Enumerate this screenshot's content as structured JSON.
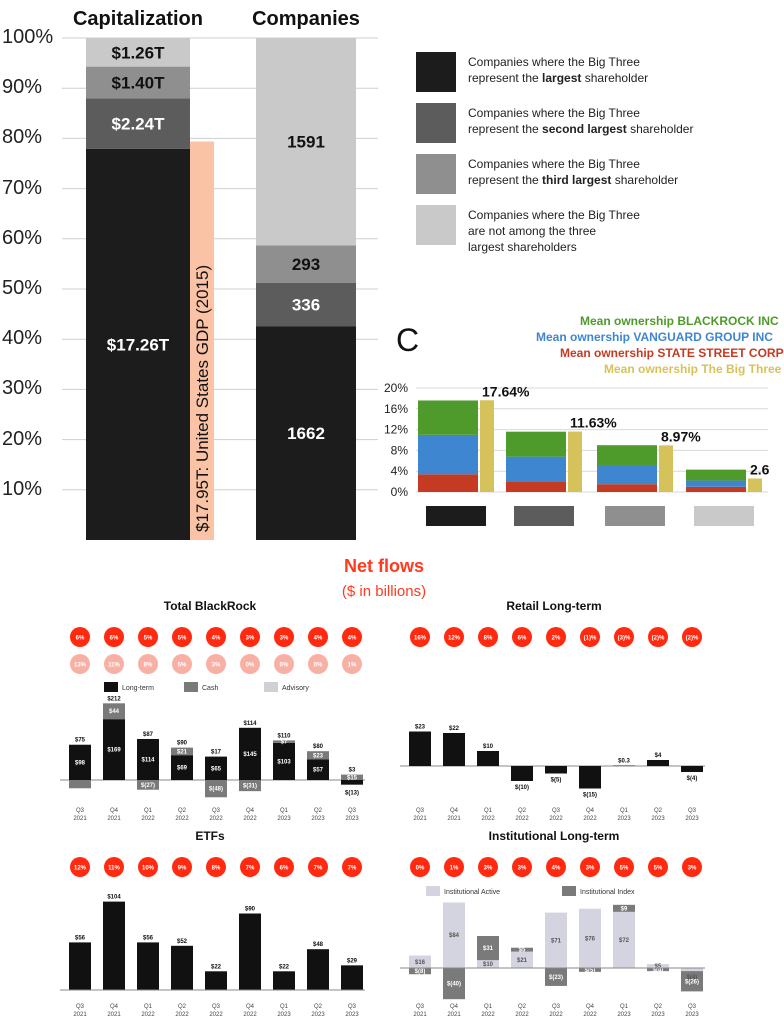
{
  "top_left": {
    "headers": [
      "Capitalization",
      "Companies"
    ],
    "y_ticks": [
      "100%",
      "90%",
      "80%",
      "70%",
      "60%",
      "50%",
      "40%",
      "30%",
      "20%",
      "10%"
    ],
    "gdp_label": "$17.95T: United States GDP (2015)",
    "gdp_value_t": 17.95
  },
  "legend": [
    {
      "text_html": "Companies where the Big Three<br>represent the <b>largest</b> shareholder",
      "color": "#1c1c1c"
    },
    {
      "text_html": "Companies where the Big Three<br>represent the <b>second largest</b> shareholder",
      "color": "#5c5c5c"
    },
    {
      "text_html": "Companies where the Big Three<br>represent the <b>third largest</b> shareholder",
      "color": "#8f8f8f"
    },
    {
      "text_html": "Companies where the Big Three<br>are not among the three<br>largest shareholders",
      "color": "#c9c9c9"
    }
  ],
  "panel_c": {
    "letter": "C",
    "legend": [
      {
        "label": "Mean ownership BLACKROCK INC",
        "color": "#4e9a2a"
      },
      {
        "label": "Mean ownership VANGUARD GROUP INC",
        "color": "#3f86d1"
      },
      {
        "label": "Mean ownership STATE STREET CORP",
        "color": "#c53a22"
      },
      {
        "label": "Mean ownership The Big Three",
        "color": "#d6c25a"
      }
    ],
    "y_ticks": [
      "20%",
      "16%",
      "12%",
      "8%",
      "4%",
      "0%"
    ]
  },
  "flows": {
    "title": "Net flows",
    "subtitle": "($ in billions)",
    "bar_legend": [
      "Long-term",
      "Cash",
      "Advisory"
    ],
    "inst_legend": [
      "Institutional Active",
      "Institutional Index"
    ]
  },
  "chart_data": [
    {
      "type": "bar",
      "title": "",
      "categories": [
        "Capitalization",
        "Companies"
      ],
      "ylim": [
        0,
        100
      ],
      "series": [
        {
          "name": "Companies where the Big Three represent the largest shareholder",
          "labels": [
            "$17.26T",
            "1662"
          ],
          "values": [
            77.9,
            42.6
          ]
        },
        {
          "name": "Companies where the Big Three represent the second largest shareholder",
          "labels": [
            "$2.24T",
            "336"
          ],
          "values": [
            10.1,
            8.6
          ]
        },
        {
          "name": "Companies where the Big Three represent the third largest shareholder",
          "labels": [
            "$1.40T",
            "293"
          ],
          "values": [
            6.3,
            7.5
          ]
        },
        {
          "name": "Companies where the Big Three are not among the three largest shareholders",
          "labels": [
            "$1.26T",
            "1591"
          ],
          "values": [
            5.7,
            41.3
          ]
        }
      ]
    },
    {
      "type": "bar",
      "title": "",
      "categories": [
        "Largest",
        "Second largest",
        "Third largest",
        "Not among top three"
      ],
      "ylim": [
        0,
        20
      ],
      "series": [
        {
          "name": "Mean ownership BLACKROCK INC",
          "values": [
            6.6,
            4.8,
            3.9,
            2.1
          ]
        },
        {
          "name": "Mean ownership VANGUARD GROUP INC",
          "values": [
            7.6,
            4.8,
            3.6,
            1.2
          ]
        },
        {
          "name": "Mean ownership STATE STREET CORP",
          "values": [
            3.4,
            2.0,
            1.5,
            1.0
          ]
        },
        {
          "name": "Mean ownership The Big Three",
          "values": [
            17.64,
            11.63,
            8.97,
            2.6
          ],
          "labels": [
            "17.64%",
            "11.63%",
            "8.97%",
            "2.6"
          ]
        }
      ]
    },
    {
      "type": "bar",
      "title": "Total BlackRock",
      "categories": [
        "Q3 2021",
        "Q4 2021",
        "Q1 2022",
        "Q2 2022",
        "Q3 2022",
        "Q4 2022",
        "Q1 2023",
        "Q2 2023",
        "Q3 2023"
      ],
      "growth_top": [
        "6%",
        "6%",
        "5%",
        "5%",
        "4%",
        "3%",
        "3%",
        "4%",
        "4%"
      ],
      "growth_bottom": [
        "13%",
        "11%",
        "8%",
        "5%",
        "3%",
        "0%",
        "0%",
        "0%",
        "1%"
      ],
      "totals": [
        "$75",
        "$212",
        "$87",
        "$90",
        "$17",
        "$114",
        "$110",
        "$80",
        "$3"
      ],
      "series": [
        {
          "name": "Long-term",
          "values": [
            98,
            169,
            114,
            69,
            65,
            145,
            103,
            57,
            -13
          ],
          "labels": [
            "$98",
            "$169",
            "$114",
            "$69",
            "$65",
            "$145",
            "$103",
            "$57",
            "$(13)"
          ]
        },
        {
          "name": "Cash",
          "values": [
            -23,
            44,
            -27,
            21,
            -48,
            -31,
            7,
            23,
            15
          ],
          "labels": [
            "",
            "$44",
            "$(27)",
            "$21",
            "$(48)",
            "$(31)",
            "$7",
            "$23",
            "$15"
          ]
        }
      ]
    },
    {
      "type": "bar",
      "title": "Retail Long-term",
      "categories": [
        "Q3 2021",
        "Q4 2021",
        "Q1 2022",
        "Q2 2022",
        "Q3 2022",
        "Q4 2022",
        "Q1 2023",
        "Q2 2023",
        "Q3 2023"
      ],
      "growth": [
        "16%",
        "12%",
        "8%",
        "6%",
        "2%",
        "(1)%",
        "(3)%",
        "(2)%",
        "(2)%"
      ],
      "values": [
        23,
        22,
        10,
        -10,
        -5,
        -15,
        0.3,
        4,
        -4
      ],
      "labels": [
        "$23",
        "$22",
        "$10",
        "$(10)",
        "$(5)",
        "$(15)",
        "$0.3",
        "$4",
        "$(4)"
      ]
    },
    {
      "type": "bar",
      "title": "ETFs",
      "categories": [
        "Q3 2021",
        "Q4 2021",
        "Q1 2022",
        "Q2 2022",
        "Q3 2022",
        "Q4 2022",
        "Q1 2023",
        "Q2 2023",
        "Q3 2023"
      ],
      "growth": [
        "12%",
        "11%",
        "10%",
        "9%",
        "8%",
        "7%",
        "6%",
        "7%",
        "7%"
      ],
      "values": [
        56,
        104,
        56,
        52,
        22,
        90,
        22,
        48,
        29
      ],
      "labels": [
        "$56",
        "$104",
        "$56",
        "$52",
        "$22",
        "$90",
        "$22",
        "$48",
        "$29"
      ]
    },
    {
      "type": "bar",
      "title": "Institutional Long-term",
      "categories": [
        "Q3 2021",
        "Q4 2021",
        "Q1 2022",
        "Q2 2022",
        "Q3 2022",
        "Q4 2022",
        "Q1 2023",
        "Q2 2023",
        "Q3 2023"
      ],
      "growth": [
        "0%",
        "1%",
        "3%",
        "3%",
        "4%",
        "3%",
        "5%",
        "5%",
        "3%"
      ],
      "series": [
        {
          "name": "Institutional Active",
          "values": [
            16,
            84,
            10,
            21,
            71,
            76,
            72,
            5,
            -4
          ],
          "labels": [
            "$16",
            "$84",
            "$10",
            "$21",
            "$71",
            "$76",
            "$72",
            "$5",
            "$(4)"
          ]
        },
        {
          "name": "Institutional Index",
          "values": [
            -8,
            -40,
            31,
            5,
            -23,
            -5,
            9,
            -4,
            -26
          ],
          "labels": [
            "$(8)",
            "$(40)",
            "$31",
            "$5",
            "$(23)",
            "$(5)",
            "$9",
            "$(4)",
            "$(26)"
          ]
        }
      ]
    }
  ]
}
